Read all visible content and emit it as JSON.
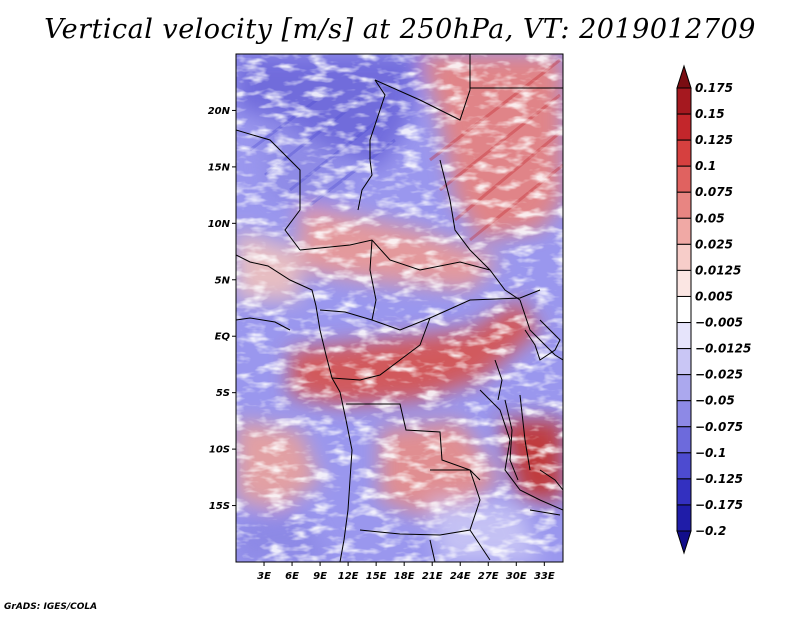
{
  "title": "Vertical velocity [m/s] at 250hPa, VT: 2019012709",
  "footer": "GrADS: IGES/COLA",
  "map": {
    "lat_labels": [
      "20N",
      "15N",
      "10N",
      "5N",
      "EQ",
      "5S",
      "10S",
      "15S"
    ],
    "lat_values": [
      20,
      15,
      10,
      5,
      0,
      -5,
      -10,
      -15
    ],
    "lon_labels": [
      "3E",
      "6E",
      "9E",
      "12E",
      "15E",
      "18E",
      "21E",
      "24E",
      "27E",
      "30E",
      "33E"
    ],
    "lon_values": [
      3,
      6,
      9,
      12,
      15,
      18,
      21,
      24,
      27,
      30,
      33
    ],
    "lon_range": [
      0,
      35
    ],
    "lat_range": [
      -20,
      25
    ]
  },
  "colorbar": {
    "labels": [
      "0.175",
      "0.15",
      "0.125",
      "0.1",
      "0.075",
      "0.05",
      "0.025",
      "0.0125",
      "0.005",
      "−0.005",
      "−0.0125",
      "−0.025",
      "−0.05",
      "−0.075",
      "−0.1",
      "−0.125",
      "−0.175",
      "−0.2"
    ],
    "colors": [
      "#7a0d12",
      "#a5181f",
      "#c3262b",
      "#d6403f",
      "#e06260",
      "#e88582",
      "#f0a9a5",
      "#f7cdc9",
      "#fbe6e3",
      "#ffffff",
      "#e6e4fb",
      "#c9c6f5",
      "#aba8ee",
      "#8d89e6",
      "#6d6adc",
      "#4d4bd0",
      "#3330c0",
      "#1f1ca8",
      "#110d8a"
    ]
  }
}
